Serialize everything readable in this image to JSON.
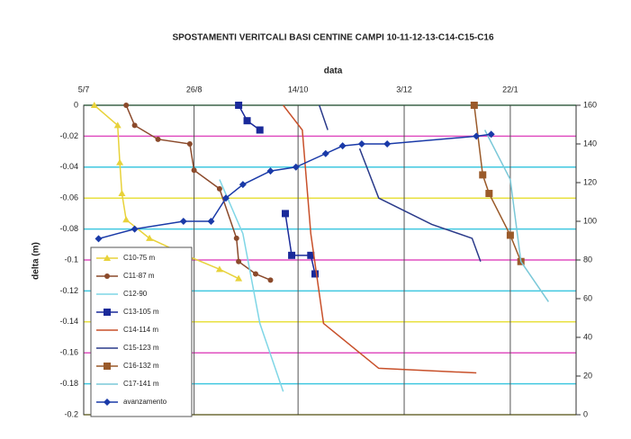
{
  "chart_data": {
    "type": "line",
    "title": "SPOSTAMENTI VERITCALI BASI CENTINE CAMPI 10-11-12-13-C14-C15-C16",
    "x_label": "data",
    "y_label": "delta (m)",
    "xlim": [
      0,
      232
    ],
    "xticks": [
      {
        "value": 0,
        "label": "5/7"
      },
      {
        "value": 52,
        "label": "26/8"
      },
      {
        "value": 101,
        "label": "14/10"
      },
      {
        "value": 151,
        "label": "3/12"
      },
      {
        "value": 201,
        "label": "22/1"
      }
    ],
    "ylim": [
      -0.2,
      0
    ],
    "yticks": [
      0,
      -0.02,
      -0.04,
      -0.06,
      -0.08,
      -0.1,
      -0.12,
      -0.14,
      -0.16,
      -0.18,
      -0.2
    ],
    "y2lim": [
      0,
      160
    ],
    "y2ticks": [
      0,
      20,
      40,
      60,
      80,
      100,
      120,
      140,
      160
    ],
    "grid": true,
    "grid_colors": [
      "#50c878",
      "#e050c0",
      "#40c8e0",
      "#e8e040",
      "#40c8e0",
      "#e050c0",
      "#40c8e0",
      "#e8e040",
      "#e050c0",
      "#40c8e0",
      "#e8e040"
    ],
    "legend": "lower left",
    "series": [
      {
        "name": "C10-75 m",
        "color": "#e8d23a",
        "marker": "triangle",
        "x": [
          5,
          16,
          17,
          18,
          20,
          31,
          50,
          64,
          73
        ],
        "values": [
          0,
          -0.013,
          -0.037,
          -0.057,
          -0.074,
          -0.086,
          -0.098,
          -0.106,
          -0.112
        ]
      },
      {
        "name": "C11-87 m",
        "color": "#8b4a2b",
        "marker": "circle",
        "x": [
          20,
          24,
          35,
          50,
          52,
          64,
          72,
          73,
          81,
          88
        ],
        "values": [
          0,
          -0.013,
          -0.022,
          -0.025,
          -0.042,
          -0.054,
          -0.086,
          -0.101,
          -0.109,
          -0.113
        ]
      },
      {
        "name": "C12-90",
        "color": "#7fd6e6",
        "marker": "none",
        "x": [
          64,
          75,
          83,
          94
        ],
        "values": [
          -0.048,
          -0.083,
          -0.141,
          -0.185
        ]
      },
      {
        "name": "C13-105 m",
        "color": "#1a2a9a",
        "marker": "square",
        "x": [
          73,
          77,
          83,
          null,
          95,
          98,
          107,
          109
        ],
        "values": [
          0,
          -0.01,
          -0.016,
          null,
          -0.07,
          -0.097,
          -0.097,
          -0.109
        ]
      },
      {
        "name": "C14-114 m",
        "color": "#c8502a",
        "marker": "none",
        "x": [
          94,
          103,
          107,
          113,
          139,
          185
        ],
        "values": [
          0,
          -0.016,
          -0.083,
          -0.141,
          -0.17,
          -0.173
        ]
      },
      {
        "name": "C15-123 m",
        "color": "#2a3a8a",
        "marker": "none",
        "x": [
          111,
          115,
          null,
          130,
          139,
          164,
          183,
          187
        ],
        "values": [
          0,
          -0.016,
          null,
          -0.028,
          -0.06,
          -0.077,
          -0.086,
          -0.101
        ]
      },
      {
        "name": "C16-132 m",
        "color": "#9a5a2a",
        "marker": "square",
        "x": [
          184,
          188,
          191,
          201,
          206
        ],
        "values": [
          0,
          -0.045,
          -0.057,
          -0.084,
          -0.101
        ]
      },
      {
        "name": "C17-141 m",
        "color": "#7ac8d8",
        "marker": "none",
        "x": [
          189,
          201,
          206,
          219
        ],
        "values": [
          -0.016,
          -0.048,
          -0.101,
          -0.127
        ]
      },
      {
        "name": "avanzamento",
        "color": "#1a3aa8",
        "marker": "diamond",
        "axis": "y2",
        "x": [
          7,
          24,
          47,
          60,
          67,
          75,
          88,
          100,
          114,
          122,
          131,
          143,
          185,
          192
        ],
        "values": [
          91,
          96,
          100,
          100,
          112,
          119,
          126,
          128,
          135,
          139,
          140,
          140,
          144,
          145
        ]
      }
    ]
  }
}
